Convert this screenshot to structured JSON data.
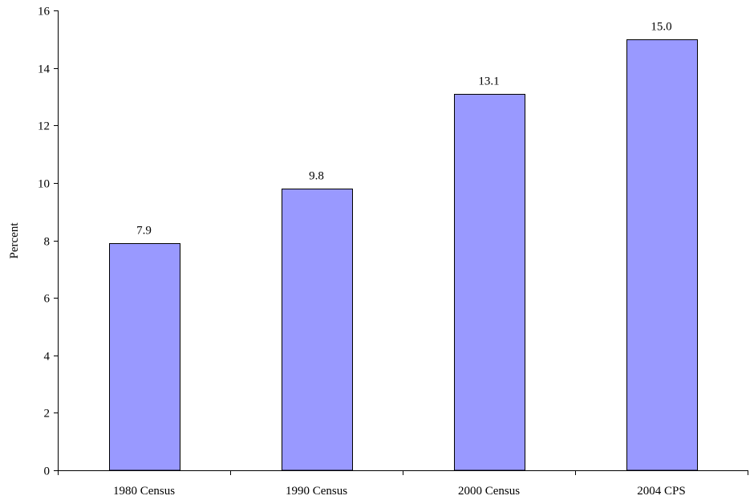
{
  "chart_data": {
    "type": "bar",
    "categories": [
      "1980 Census",
      "1990 Census",
      "2000 Census",
      "2004 CPS"
    ],
    "values": [
      7.9,
      9.8,
      13.1,
      15.0
    ],
    "data_labels": [
      "7.9",
      "9.8",
      "13.1",
      "15.0"
    ],
    "ylabel": "Percent",
    "xlabel": "",
    "ylim": [
      0,
      16
    ],
    "yticks": [
      0,
      2,
      4,
      6,
      8,
      10,
      12,
      14,
      16
    ],
    "grid": false,
    "legend": "none",
    "bar_color": "#9999ff",
    "bar_edge_color": "#000000"
  }
}
